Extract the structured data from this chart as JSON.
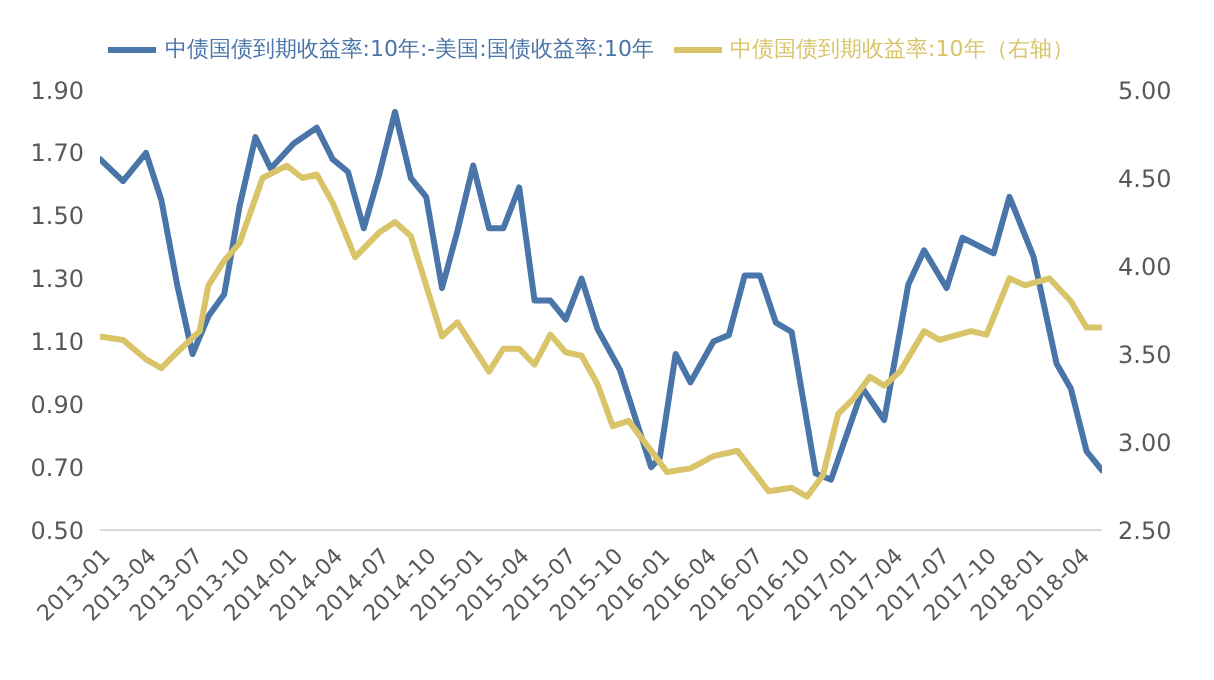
{
  "chart_data": {
    "type": "line",
    "xlim": [
      "2013-01-01",
      "2018-05-15"
    ],
    "xticks": [
      "2013-01",
      "2013-04",
      "2013-07",
      "2013-10",
      "2014-01",
      "2014-04",
      "2014-07",
      "2014-10",
      "2015-01",
      "2015-04",
      "2015-07",
      "2015-10",
      "2016-01",
      "2016-04",
      "2016-07",
      "2016-10",
      "2017-01",
      "2017-04",
      "2017-07",
      "2017-10",
      "2018-01",
      "2018-04"
    ],
    "ylim": [
      0.5,
      1.9
    ],
    "yticks": [
      {
        "value": 0.5,
        "label": "0.50"
      },
      {
        "value": 0.7,
        "label": "0.70"
      },
      {
        "value": 0.9,
        "label": "0.90"
      },
      {
        "value": 1.1,
        "label": "1.10"
      },
      {
        "value": 1.3,
        "label": "1.30"
      },
      {
        "value": 1.5,
        "label": "1.50"
      },
      {
        "value": 1.7,
        "label": "1.70"
      },
      {
        "value": 1.9,
        "label": "1.90"
      }
    ],
    "y2lim": [
      2.5,
      5.0
    ],
    "y2ticks": [
      {
        "value": 2.5,
        "label": "2.50"
      },
      {
        "value": 3.0,
        "label": "3.00"
      },
      {
        "value": 3.5,
        "label": "3.50"
      },
      {
        "value": 4.0,
        "label": "4.00"
      },
      {
        "value": 4.5,
        "label": "4.50"
      },
      {
        "value": 5.0,
        "label": "5.00"
      }
    ],
    "grid": false,
    "legend": "top",
    "marker": "none",
    "line_style": "solid",
    "series": [
      {
        "name": "中债国债到期收益率:10年:-美国:国债收益率:10年",
        "color": "#4a75a8",
        "x": [
          "2013-01-01",
          "2013-02-15",
          "2013-04-01",
          "2013-05-01",
          "2013-06-01",
          "2013-07-01",
          "2013-08-01",
          "2013-09-01",
          "2013-10-01",
          "2013-11-01",
          "2013-12-01",
          "2014-01-15",
          "2014-03-01",
          "2014-04-01",
          "2014-05-01",
          "2014-06-01",
          "2014-07-01",
          "2014-08-01",
          "2014-09-01",
          "2014-10-01",
          "2014-11-01",
          "2014-12-01",
          "2015-01-01",
          "2015-02-01",
          "2015-03-01",
          "2015-04-01",
          "2015-05-01",
          "2015-06-01",
          "2015-07-01",
          "2015-08-01",
          "2015-09-01",
          "2015-10-15",
          "2015-12-15",
          "2016-01-01",
          "2016-02-01",
          "2016-03-01",
          "2016-04-15",
          "2016-05-15",
          "2016-06-15",
          "2016-07-15",
          "2016-08-15",
          "2016-09-15",
          "2016-11-01",
          "2016-12-01",
          "2017-02-01",
          "2017-03-15",
          "2017-05-01",
          "2017-06-01",
          "2017-07-15",
          "2017-08-15",
          "2017-10-15",
          "2017-11-15",
          "2018-01-01",
          "2018-02-15",
          "2018-03-15",
          "2018-04-15",
          "2018-05-15"
        ],
        "values": [
          1.68,
          1.61,
          1.7,
          1.55,
          1.28,
          1.06,
          1.18,
          1.25,
          1.53,
          1.75,
          1.65,
          1.73,
          1.78,
          1.68,
          1.64,
          1.46,
          1.63,
          1.83,
          1.62,
          1.56,
          1.27,
          1.45,
          1.66,
          1.46,
          1.46,
          1.59,
          1.23,
          1.23,
          1.17,
          1.3,
          1.14,
          1.01,
          0.7,
          0.73,
          1.06,
          0.97,
          1.1,
          1.12,
          1.31,
          1.31,
          1.16,
          1.13,
          0.68,
          0.66,
          0.95,
          0.85,
          1.28,
          1.39,
          1.27,
          1.43,
          1.38,
          1.56,
          1.37,
          1.03,
          0.95,
          0.75,
          0.69
        ]
      },
      {
        "name": "中债国债到期收益率:10年（右轴）",
        "color": "#d9c46a",
        "axis": "y2",
        "x": [
          "2013-01-01",
          "2013-02-15",
          "2013-04-01",
          "2013-05-01",
          "2013-06-01",
          "2013-07-15",
          "2013-08-01",
          "2013-09-01",
          "2013-10-01",
          "2013-11-15",
          "2014-01-01",
          "2014-02-01",
          "2014-03-01",
          "2014-04-01",
          "2014-05-15",
          "2014-07-01",
          "2014-08-01",
          "2014-09-01",
          "2014-10-01",
          "2014-11-01",
          "2014-12-01",
          "2015-02-01",
          "2015-03-01",
          "2015-04-01",
          "2015-05-01",
          "2015-06-01",
          "2015-07-01",
          "2015-08-01",
          "2015-09-01",
          "2015-10-01",
          "2015-11-01",
          "2016-01-15",
          "2016-03-01",
          "2016-04-15",
          "2016-06-01",
          "2016-08-01",
          "2016-09-15",
          "2016-10-15",
          "2016-11-15",
          "2016-12-15",
          "2017-01-15",
          "2017-02-15",
          "2017-03-15",
          "2017-04-15",
          "2017-06-01",
          "2017-07-01",
          "2017-09-01",
          "2017-10-01",
          "2017-11-15",
          "2017-12-15",
          "2018-02-01",
          "2018-03-15",
          "2018-04-15",
          "2018-05-15"
        ],
        "values": [
          3.6,
          3.58,
          3.47,
          3.42,
          3.51,
          3.63,
          3.89,
          4.03,
          4.13,
          4.5,
          4.57,
          4.5,
          4.52,
          4.36,
          4.05,
          4.19,
          4.25,
          4.17,
          3.89,
          3.6,
          3.68,
          3.4,
          3.53,
          3.53,
          3.44,
          3.61,
          3.51,
          3.49,
          3.33,
          3.09,
          3.12,
          2.83,
          2.85,
          2.92,
          2.95,
          2.72,
          2.74,
          2.69,
          2.81,
          3.16,
          3.25,
          3.37,
          3.32,
          3.4,
          3.63,
          3.58,
          3.63,
          3.61,
          3.93,
          3.89,
          3.93,
          3.8,
          3.65,
          3.65
        ]
      }
    ]
  }
}
